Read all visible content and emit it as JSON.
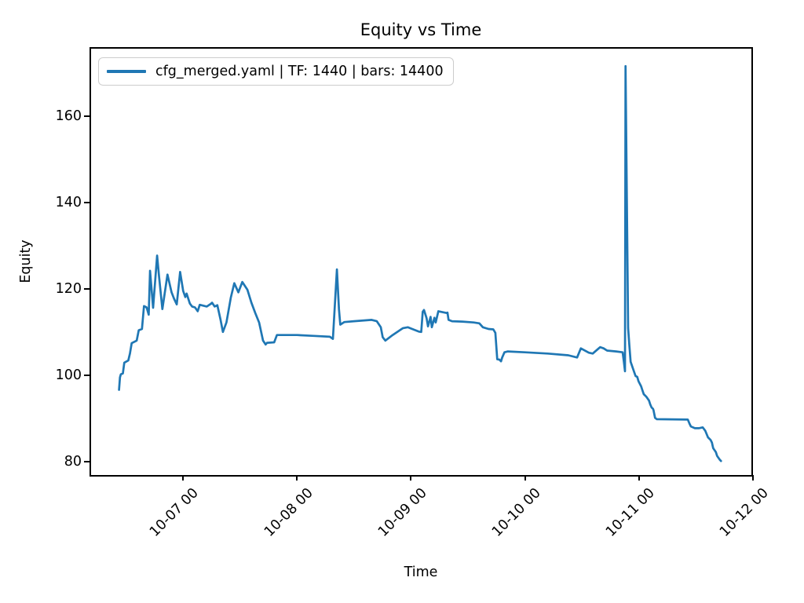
{
  "figure": {
    "background": "#ffffff",
    "text_color": "#000000",
    "spine_color": "#000000"
  },
  "chart_data": {
    "type": "line",
    "title": "Equity vs Time",
    "xlabel": "Time",
    "ylabel": "Equity",
    "grid": false,
    "legend_position": "upper left",
    "legend": [
      {
        "label": "cfg_merged.yaml | TF: 1440 | bars: 14400",
        "color": "#1f77b4"
      }
    ],
    "line_color": "#1f77b4",
    "line_width": 2.7,
    "x_unit": "days relative to 10-07 00:00",
    "xlim": [
      -0.82,
      5.0
    ],
    "ylim": [
      76.5,
      176.0
    ],
    "x_ticks": [
      {
        "t": 0,
        "label": "10-07 00"
      },
      {
        "t": 1,
        "label": "10-08 00"
      },
      {
        "t": 2,
        "label": "10-09 00"
      },
      {
        "t": 3,
        "label": "10-10 00"
      },
      {
        "t": 4,
        "label": "10-11 00"
      },
      {
        "t": 5,
        "label": "10-12 00"
      }
    ],
    "y_ticks": [
      {
        "v": 80,
        "label": "80"
      },
      {
        "v": 100,
        "label": "100"
      },
      {
        "v": 120,
        "label": "120"
      },
      {
        "v": 140,
        "label": "140"
      },
      {
        "v": 160,
        "label": "160"
      }
    ],
    "series": [
      {
        "name": "cfg_merged.yaml | TF: 1440 | bars: 14400",
        "points": [
          [
            -0.561,
            96.6
          ],
          [
            -0.553,
            99.5
          ],
          [
            -0.545,
            100.2
          ],
          [
            -0.527,
            100.4
          ],
          [
            -0.515,
            102.9
          ],
          [
            -0.48,
            103.4
          ],
          [
            -0.465,
            105.0
          ],
          [
            -0.45,
            107.4
          ],
          [
            -0.406,
            108.0
          ],
          [
            -0.388,
            110.4
          ],
          [
            -0.36,
            110.7
          ],
          [
            -0.342,
            116.0
          ],
          [
            -0.319,
            115.7
          ],
          [
            -0.301,
            114.0
          ],
          [
            -0.289,
            124.2
          ],
          [
            -0.262,
            115.6
          ],
          [
            -0.227,
            127.7
          ],
          [
            -0.21,
            122.8
          ],
          [
            -0.181,
            115.3
          ],
          [
            -0.136,
            123.3
          ],
          [
            -0.1,
            119.2
          ],
          [
            -0.078,
            117.7
          ],
          [
            -0.055,
            116.4
          ],
          [
            -0.025,
            123.9
          ],
          [
            0.002,
            119.5
          ],
          [
            0.02,
            118.1
          ],
          [
            0.032,
            118.9
          ],
          [
            0.06,
            116.6
          ],
          [
            0.08,
            115.9
          ],
          [
            0.105,
            115.7
          ],
          [
            0.129,
            114.8
          ],
          [
            0.147,
            116.3
          ],
          [
            0.209,
            115.9
          ],
          [
            0.243,
            116.5
          ],
          [
            0.255,
            116.8
          ],
          [
            0.278,
            115.9
          ],
          [
            0.301,
            116.2
          ],
          [
            0.328,
            113.0
          ],
          [
            0.35,
            110.0
          ],
          [
            0.381,
            112.2
          ],
          [
            0.42,
            118.0
          ],
          [
            0.45,
            121.3
          ],
          [
            0.486,
            119.2
          ],
          [
            0.52,
            121.6
          ],
          [
            0.565,
            119.8
          ],
          [
            0.6,
            116.8
          ],
          [
            0.634,
            114.4
          ],
          [
            0.668,
            112.2
          ],
          [
            0.702,
            108.0
          ],
          [
            0.725,
            107.1
          ],
          [
            0.737,
            107.5
          ],
          [
            0.8,
            107.6
          ],
          [
            0.824,
            109.3
          ],
          [
            1.0,
            109.3
          ],
          [
            1.15,
            109.1
          ],
          [
            1.288,
            108.9
          ],
          [
            1.315,
            108.4
          ],
          [
            1.35,
            124.5
          ],
          [
            1.368,
            115.3
          ],
          [
            1.38,
            111.7
          ],
          [
            1.414,
            112.3
          ],
          [
            1.5,
            112.5
          ],
          [
            1.6,
            112.7
          ],
          [
            1.655,
            112.8
          ],
          [
            1.7,
            112.5
          ],
          [
            1.735,
            111.1
          ],
          [
            1.752,
            108.8
          ],
          [
            1.775,
            108.0
          ],
          [
            1.839,
            109.3
          ],
          [
            1.93,
            110.9
          ],
          [
            1.972,
            111.1
          ],
          [
            2.0,
            110.8
          ],
          [
            2.068,
            110.1
          ],
          [
            2.09,
            110.0
          ],
          [
            2.103,
            114.7
          ],
          [
            2.114,
            115.1
          ],
          [
            2.137,
            113.2
          ],
          [
            2.149,
            111.3
          ],
          [
            2.172,
            113.5
          ],
          [
            2.183,
            111.1
          ],
          [
            2.206,
            113.3
          ],
          [
            2.217,
            112.2
          ],
          [
            2.24,
            114.8
          ],
          [
            2.31,
            114.4
          ],
          [
            2.32,
            114.5
          ],
          [
            2.33,
            112.8
          ],
          [
            2.36,
            112.5
          ],
          [
            2.45,
            112.4
          ],
          [
            2.55,
            112.2
          ],
          [
            2.6,
            112.0
          ],
          [
            2.631,
            111.1
          ],
          [
            2.68,
            110.7
          ],
          [
            2.722,
            110.6
          ],
          [
            2.74,
            109.8
          ],
          [
            2.757,
            103.7
          ],
          [
            2.775,
            103.6
          ],
          [
            2.79,
            103.2
          ],
          [
            2.8,
            104.1
          ],
          [
            2.82,
            105.3
          ],
          [
            2.85,
            105.5
          ],
          [
            3.0,
            105.3
          ],
          [
            3.2,
            105.0
          ],
          [
            3.38,
            104.6
          ],
          [
            3.457,
            104.1
          ],
          [
            3.49,
            106.2
          ],
          [
            3.56,
            105.2
          ],
          [
            3.594,
            105.0
          ],
          [
            3.66,
            106.5
          ],
          [
            3.69,
            106.2
          ],
          [
            3.72,
            105.7
          ],
          [
            3.8,
            105.5
          ],
          [
            3.857,
            105.3
          ],
          [
            3.868,
            103.1
          ],
          [
            3.877,
            100.9
          ],
          [
            3.882,
            171.6
          ],
          [
            3.905,
            110.9
          ],
          [
            3.916,
            106.8
          ],
          [
            3.927,
            103.1
          ],
          [
            3.95,
            101.3
          ],
          [
            3.97,
            99.8
          ],
          [
            3.985,
            99.6
          ],
          [
            3.996,
            98.6
          ],
          [
            4.019,
            97.4
          ],
          [
            4.03,
            96.5
          ],
          [
            4.042,
            95.6
          ],
          [
            4.065,
            95.0
          ],
          [
            4.088,
            94.1
          ],
          [
            4.099,
            93.2
          ],
          [
            4.111,
            92.5
          ],
          [
            4.123,
            92.2
          ],
          [
            4.127,
            91.9
          ],
          [
            4.141,
            90.1
          ],
          [
            4.157,
            89.8
          ],
          [
            4.428,
            89.7
          ],
          [
            4.444,
            88.7
          ],
          [
            4.456,
            88.1
          ],
          [
            4.49,
            87.7
          ],
          [
            4.525,
            87.7
          ],
          [
            4.559,
            87.9
          ],
          [
            4.582,
            87.1
          ],
          [
            4.605,
            85.6
          ],
          [
            4.628,
            85.0
          ],
          [
            4.64,
            84.4
          ],
          [
            4.651,
            83.1
          ],
          [
            4.674,
            82.2
          ],
          [
            4.685,
            81.3
          ],
          [
            4.709,
            80.4
          ],
          [
            4.72,
            80.1
          ]
        ]
      }
    ]
  }
}
